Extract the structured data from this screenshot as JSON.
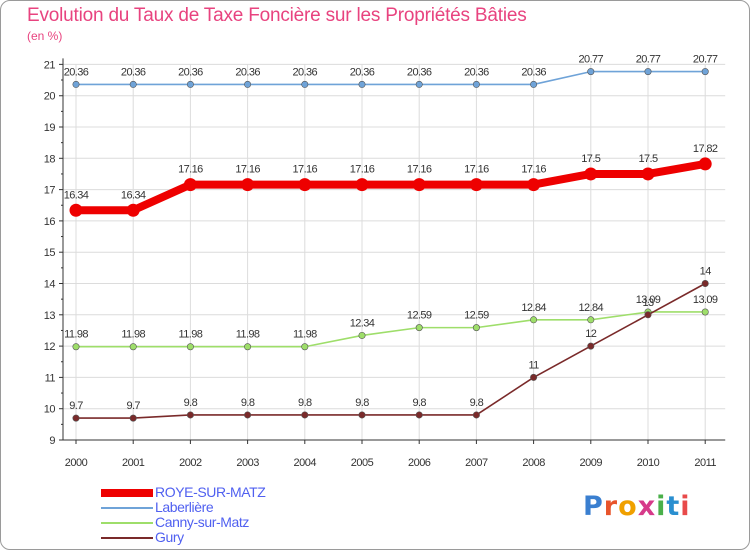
{
  "title": "Evolution du Taux de Taxe Foncière sur les Propriétés Bâties",
  "unit_label": "(en %)",
  "logo_text": "Proxiti",
  "chart_data": {
    "type": "line",
    "title": "Evolution du Taux de Taxe Foncière sur les Propriétés Bâties",
    "ylabel": "(en %)",
    "xlabel": "",
    "categories": [
      "2000",
      "2001",
      "2002",
      "2003",
      "2004",
      "2005",
      "2006",
      "2007",
      "2008",
      "2009",
      "2010",
      "2011"
    ],
    "ylim": [
      9,
      21
    ],
    "yticks": [
      "9",
      "10",
      "11",
      "12",
      "13",
      "14",
      "15",
      "16",
      "17",
      "18",
      "19",
      "20",
      "21"
    ],
    "grid": true,
    "legend_position": "bottom-left",
    "series": [
      {
        "name": "Laberlière",
        "color": "#6fa3d8",
        "values": [
          20.36,
          20.36,
          20.36,
          20.36,
          20.36,
          20.36,
          20.36,
          20.36,
          20.36,
          20.77,
          20.77,
          20.77
        ],
        "labels": [
          "20.36",
          "20.36",
          "20.36",
          "20.36",
          "20.36",
          "20.36",
          "20.36",
          "20.36",
          "20.36",
          "20.77",
          "20.77",
          "20.77"
        ]
      },
      {
        "name": "ROYE-SUR-MATZ",
        "color": "#ee0000",
        "values": [
          16.34,
          16.34,
          17.16,
          17.16,
          17.16,
          17.16,
          17.16,
          17.16,
          17.16,
          17.5,
          17.5,
          17.82
        ],
        "labels": [
          "16.34",
          "16.34",
          "17.16",
          "17.16",
          "17.16",
          "17.16",
          "17.16",
          "17.16",
          "17.16",
          "17.5",
          "17.5",
          "17.82"
        ]
      },
      {
        "name": "Canny-sur-Matz",
        "color": "#9ede6a",
        "values": [
          11.98,
          11.98,
          11.98,
          11.98,
          11.98,
          12.34,
          12.59,
          12.59,
          12.84,
          12.84,
          13.09,
          13.09
        ],
        "labels": [
          "11.98",
          "11.98",
          "11.98",
          "11.98",
          "11.98",
          "12.34",
          "12.59",
          "12.59",
          "12.84",
          "12.84",
          "13.09",
          "13.09"
        ]
      },
      {
        "name": "Gury",
        "color": "#7a2a2a",
        "values": [
          9.7,
          9.7,
          9.8,
          9.8,
          9.8,
          9.8,
          9.8,
          9.8,
          11,
          12,
          13,
          14
        ],
        "labels": [
          "9.7",
          "9.7",
          "9.8",
          "9.8",
          "9.8",
          "9.8",
          "9.8",
          "9.8",
          "11",
          "12",
          "13",
          "14"
        ]
      }
    ],
    "legend": [
      {
        "name": "ROYE-SUR-MATZ",
        "color": "#ee0000",
        "thick": true
      },
      {
        "name": "Laberlière",
        "color": "#6fa3d8",
        "thick": false
      },
      {
        "name": "Canny-sur-Matz",
        "color": "#9ede6a",
        "thick": false
      },
      {
        "name": "Gury",
        "color": "#7a2a2a",
        "thick": false
      }
    ]
  }
}
